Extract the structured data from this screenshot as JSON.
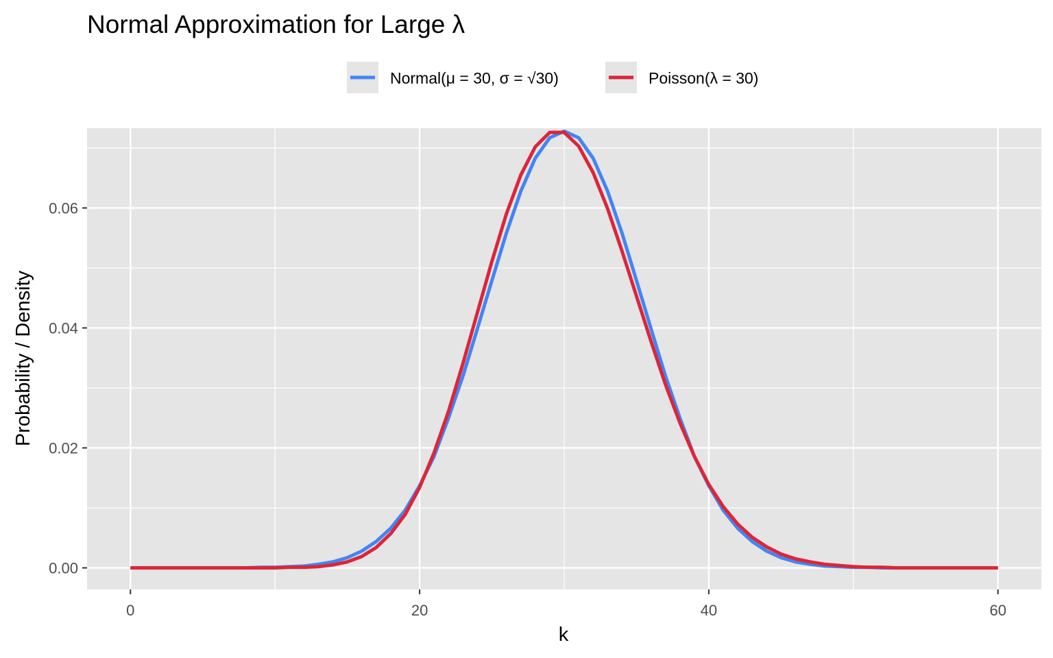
{
  "chart_data": {
    "type": "line",
    "title": "Normal Approximation for Large λ",
    "xlabel": "k",
    "ylabel": "Probability / Density",
    "xlim": [
      -3,
      63
    ],
    "ylim": [
      -0.0036,
      0.0733
    ],
    "x_ticks": [
      0,
      20,
      40,
      60
    ],
    "y_ticks": [
      0.0,
      0.02,
      0.04,
      0.06
    ],
    "x_tick_labels": [
      "0",
      "20",
      "40",
      "60"
    ],
    "y_tick_labels": [
      "0.00",
      "0.02",
      "0.04",
      "0.06"
    ],
    "grid": true,
    "legend_position": "top",
    "panel_background": "#e5e5e5",
    "x": [
      0,
      1,
      2,
      3,
      4,
      5,
      6,
      7,
      8,
      9,
      10,
      11,
      12,
      13,
      14,
      15,
      16,
      17,
      18,
      19,
      20,
      21,
      22,
      23,
      24,
      25,
      26,
      27,
      28,
      29,
      30,
      31,
      32,
      33,
      34,
      35,
      36,
      37,
      38,
      39,
      40,
      41,
      42,
      43,
      44,
      45,
      46,
      47,
      48,
      49,
      50,
      51,
      52,
      53,
      54,
      55,
      56,
      57,
      58,
      59,
      60
    ],
    "series": [
      {
        "name": "Normal(μ = 30, σ = √30)",
        "color": "#4285f4",
        "values": [
          0.0,
          0.0,
          0.0,
          0.0,
          0.0,
          0.0,
          0.0,
          0.0,
          0.0,
          0.0001,
          0.0001,
          0.0002,
          0.0003,
          0.0006,
          0.001,
          0.0017,
          0.0028,
          0.0044,
          0.0066,
          0.0096,
          0.0137,
          0.0186,
          0.025,
          0.032,
          0.0399,
          0.0479,
          0.0558,
          0.0628,
          0.0683,
          0.0717,
          0.0728,
          0.0717,
          0.0683,
          0.0628,
          0.0558,
          0.0479,
          0.0399,
          0.032,
          0.025,
          0.0186,
          0.0137,
          0.0096,
          0.0066,
          0.0044,
          0.0028,
          0.0017,
          0.001,
          0.0006,
          0.0003,
          0.0002,
          0.0001,
          0.0001,
          0.0,
          0.0,
          0.0,
          0.0,
          0.0,
          0.0,
          0.0,
          0.0,
          0.0
        ]
      },
      {
        "name": "Poisson(λ = 30)",
        "color": "#dc2638",
        "values": [
          0.0,
          0.0,
          0.0,
          0.0,
          0.0,
          0.0,
          0.0,
          0.0,
          0.0,
          0.0,
          0.0,
          0.0001,
          0.0001,
          0.0002,
          0.0005,
          0.001,
          0.0019,
          0.0034,
          0.0057,
          0.0089,
          0.0134,
          0.0192,
          0.0261,
          0.0341,
          0.0426,
          0.0511,
          0.059,
          0.0655,
          0.0702,
          0.0726,
          0.0726,
          0.0703,
          0.0659,
          0.0599,
          0.0528,
          0.0453,
          0.0378,
          0.0306,
          0.0242,
          0.0186,
          0.0139,
          0.0102,
          0.0073,
          0.0051,
          0.0035,
          0.0023,
          0.0015,
          0.001,
          0.0006,
          0.0004,
          0.0002,
          0.0001,
          0.0001,
          0.0,
          0.0,
          0.0,
          0.0,
          0.0,
          0.0,
          0.0,
          0.0
        ]
      }
    ]
  }
}
